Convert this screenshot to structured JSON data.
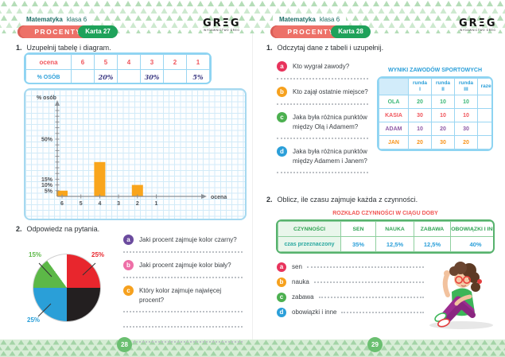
{
  "page_left": {
    "header": {
      "subject": "Matematyka",
      "grade": "klasa 6",
      "topic": "PROCENTY",
      "card": "Karta 27"
    },
    "brand": {
      "name": "GRΞG",
      "subtext": "WYDAWNICTWO GREG"
    },
    "page_number": "28",
    "task1": {
      "number": "1.",
      "title": "Uzupełnij tabelę i diagram.",
      "table": {
        "row1_label": "ocena",
        "row1_values": [
          "6",
          "5",
          "4",
          "3",
          "2",
          "1"
        ],
        "row2_label": "% OSÓB",
        "row2_values": [
          "",
          "20%",
          "",
          "30%",
          "",
          "5%"
        ]
      }
    },
    "task2": {
      "number": "2.",
      "title": "Odpowiedz na pytania.",
      "questions": [
        {
          "id": "a",
          "color": "#6b4b9e",
          "text": "Jaki procent zajmuje kolor czarny?",
          "answer_lines": 1
        },
        {
          "id": "b",
          "color": "#ee6fa7",
          "text": "Jaki procent zajmuje kolor biały?",
          "answer_lines": 1
        },
        {
          "id": "c",
          "color": "#f6a11e",
          "text": "Który kolor zajmuje najwięcej procent?",
          "answer_lines": 3
        }
      ]
    }
  },
  "page_right": {
    "header": {
      "subject": "Matematyka",
      "grade": "klasa 6",
      "topic": "PROCENTY",
      "card": "Karta 28"
    },
    "brand": {
      "name": "GRΞG",
      "subtext": "WYDAWNICTWO GREG"
    },
    "page_number": "29",
    "task1": {
      "number": "1.",
      "title": "Odczytaj dane z tabeli i uzupełnij.",
      "questions": [
        {
          "id": "a",
          "color": "#e8335c",
          "text": "Kto wygrał zawody?",
          "answer_lines": 1
        },
        {
          "id": "b",
          "color": "#f6a11e",
          "text": "Kto zajął ostatnie miejsce?",
          "answer_lines": 1
        },
        {
          "id": "c",
          "color": "#4cb050",
          "text": "Jaka była różnica punktów między Olą i Adamem?",
          "answer_lines": 1
        },
        {
          "id": "d",
          "color": "#2b9fd9",
          "text": "Jaka była różnica punktów między Adamem i Janem?",
          "answer_lines": 1
        }
      ],
      "results_table": {
        "title": "WYNIKI ZAWODÓW SPORTOWYCH",
        "col_headers": [
          "",
          "runda I",
          "runda II",
          "runda III",
          "razem"
        ],
        "rows": [
          {
            "name": "OLA",
            "color": "#3cb878",
            "values": [
              "20",
              "10",
              "10",
              ""
            ]
          },
          {
            "name": "KASIA",
            "color": "#f0565c",
            "values": [
              "30",
              "10",
              "10",
              ""
            ]
          },
          {
            "name": "ADAM",
            "color": "#8e5ba6",
            "values": [
              "10",
              "20",
              "30",
              ""
            ]
          },
          {
            "name": "JAN",
            "color": "#f7941d",
            "values": [
              "20",
              "30",
              "20",
              ""
            ]
          }
        ]
      }
    },
    "task2": {
      "number": "2.",
      "title": "Oblicz, ile czasu zajmuje każda z czynności.",
      "activity_table": {
        "title": "ROZKŁAD CZYNNOŚCI W CIĄGU DOBY",
        "col_headers": [
          "CZYNNOŚCI",
          "SEN",
          "NAUKA",
          "ZABAWA",
          "OBOWIĄZKI I INNE"
        ],
        "row_label": "czas przeznaczony",
        "values": [
          "35%",
          "12,5%",
          "12,5%",
          "40%"
        ]
      },
      "items": [
        {
          "id": "a",
          "color": "#e8335c",
          "label": "sen"
        },
        {
          "id": "b",
          "color": "#f6a11e",
          "label": "nauka"
        },
        {
          "id": "c",
          "color": "#4cb050",
          "label": "zabawa"
        },
        {
          "id": "d",
          "color": "#2b9fd9",
          "label": "obowiązki i inne"
        }
      ]
    }
  },
  "chart_data": [
    {
      "type": "bar",
      "title": "",
      "xlabel": "ocena",
      "ylabel": "% osób",
      "categories": [
        "6",
        "5",
        "4",
        "3",
        "2",
        "1"
      ],
      "values": [
        5,
        null,
        30,
        null,
        10,
        null
      ],
      "y_tick_labels": [
        "5%",
        "10%",
        "15%",
        "50%"
      ],
      "y_tick_values": [
        5,
        10,
        15,
        50
      ],
      "ylim": [
        0,
        80
      ],
      "grid": true,
      "bar_color": "#f9a51c",
      "note": "bars for grades 5, 3 and 1 are left blank for the student to draw"
    },
    {
      "type": "pie",
      "title": "",
      "start_angle_deg": 0,
      "direction": "clockwise",
      "slices": [
        {
          "name": "red",
          "value": 25,
          "color": "#e8262d",
          "label": "25%"
        },
        {
          "name": "black",
          "value": 25,
          "color": "#231f20",
          "label": ""
        },
        {
          "name": "blue",
          "value": 25,
          "color": "#2a9fd8",
          "label": "25%"
        },
        {
          "name": "green",
          "value": 15,
          "color": "#5cb847",
          "label": "15%"
        },
        {
          "name": "white",
          "value": 10,
          "color": "#ffffff",
          "label": ""
        }
      ]
    }
  ]
}
